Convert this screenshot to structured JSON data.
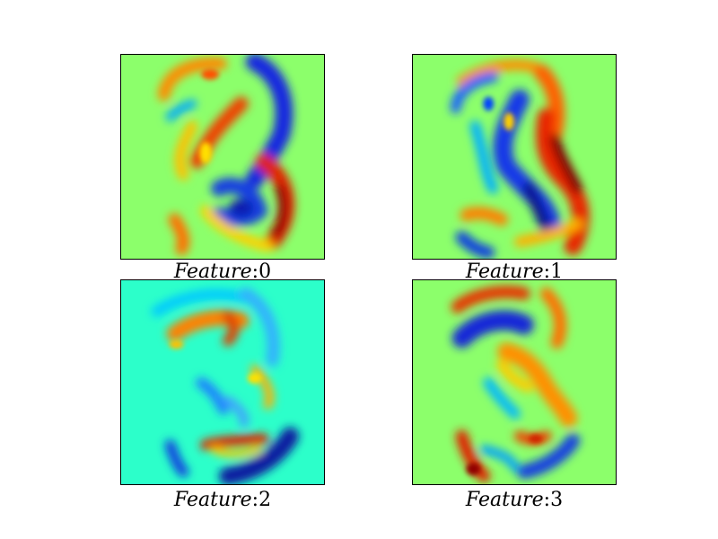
{
  "chart_data": {
    "type": "heatmap",
    "colormap": "jet",
    "axes": "hidden",
    "grid": false,
    "panels": [
      {
        "title": "Feature:0",
        "title_parts": [
          "Feature",
          ":0"
        ],
        "colors": {
          "background": "#8cff6b"
        }
      },
      {
        "title": "Feature:1",
        "title_parts": [
          "Feature",
          ":1"
        ],
        "colors": {
          "background": "#8cff6b"
        }
      },
      {
        "title": "Feature:2",
        "title_parts": [
          "Feature",
          ":2"
        ],
        "colors": {
          "background": "#2cffca"
        }
      },
      {
        "title": "Feature:3",
        "title_parts": [
          "Feature",
          ":3"
        ],
        "colors": {
          "background": "#8cff6b"
        }
      }
    ]
  }
}
